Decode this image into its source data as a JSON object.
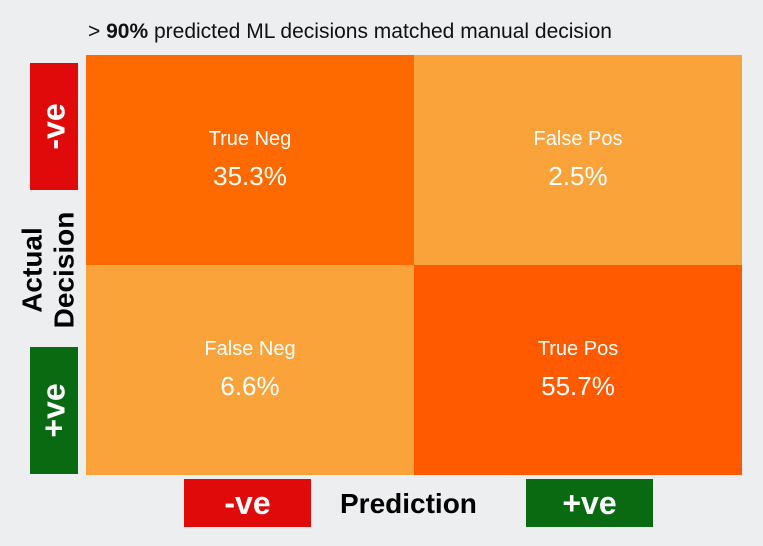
{
  "chart_data": {
    "type": "heatmap",
    "title_prefix": "> ",
    "title_emphasis": "90%",
    "title_rest": " predicted ML decisions matched manual decision",
    "ylabel_line1": "Actual",
    "ylabel_line2": "Decision",
    "xlabel": "Prediction",
    "rows": [
      "-ve",
      "+ve"
    ],
    "cols": [
      "-ve",
      "+ve"
    ],
    "cells": [
      [
        {
          "label": "True Neg",
          "value": 35.3,
          "text": "35.3%"
        },
        {
          "label": "False Pos",
          "value": 2.5,
          "text": "2.5%"
        }
      ],
      [
        {
          "label": "False Neg",
          "value": 6.6,
          "text": "6.6%"
        },
        {
          "label": "True Pos",
          "value": 55.7,
          "text": "55.7%"
        }
      ]
    ],
    "colors": {
      "diagonal_tn": "#ff6a00",
      "diagonal_tp": "#ff5a00",
      "off_diagonal": "#faa33a",
      "negative_badge": "#e00a0a",
      "positive_badge": "#0a6a12"
    }
  }
}
